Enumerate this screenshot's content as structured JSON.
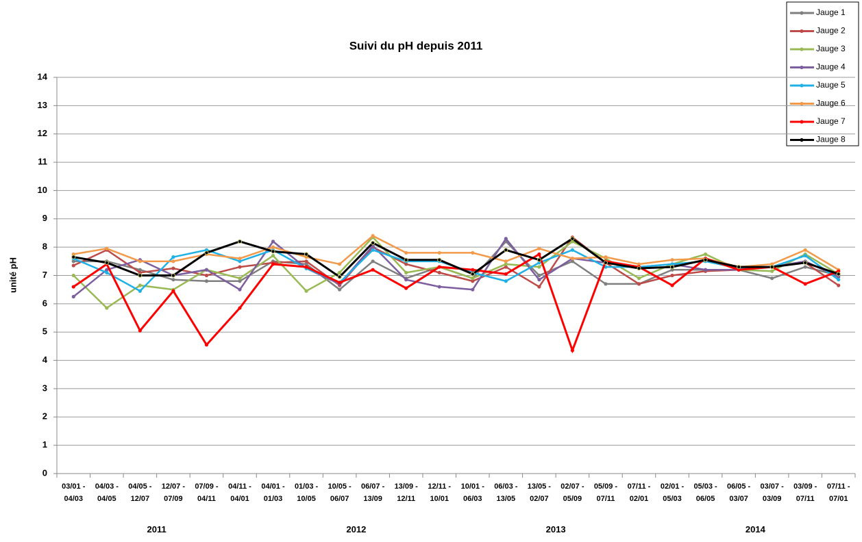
{
  "chart_data": {
    "type": "line",
    "title": "Suivi du pH depuis 2011",
    "y_label": "unité pH",
    "categories": [
      "03/01 - 04/03",
      "04/03 - 04/05",
      "04/05 - 12/07",
      "12/07 - 07/09",
      "07/09 - 04/11",
      "04/11 - 04/01",
      "04/01 - 01/03",
      "01/03 - 10/05",
      "10/05 - 06/07",
      "06/07 - 13/09",
      "13/09 - 12/11",
      "12/11 - 10/01",
      "10/01 - 06/03",
      "06/03 - 13/05",
      "13/05 - 02/07",
      "02/07 - 05/09",
      "05/09 - 07/11",
      "07/11 - 02/01",
      "02/01 - 05/03",
      "05/03 - 06/05",
      "06/05 - 03/07",
      "03/07 - 03/09",
      "03/09 - 07/11",
      "07/11 - 07/01"
    ],
    "groups": [
      "2011",
      "2012",
      "2013",
      "2014"
    ],
    "ylim": [
      0,
      14
    ],
    "yticks": [
      0,
      1,
      2,
      3,
      4,
      5,
      6,
      7,
      8,
      9,
      10,
      11,
      12,
      13,
      14
    ],
    "grid": true,
    "legend": "top-right",
    "series": [
      {
        "name": "Jauge 1",
        "color": "#7f7f7f",
        "values": [
          7.5,
          7.5,
          7.2,
          6.85,
          6.8,
          6.8,
          7.5,
          7.4,
          6.5,
          7.5,
          6.9,
          7.3,
          6.9,
          8.2,
          7.0,
          7.5,
          6.7,
          6.7,
          7.2,
          7.2,
          7.2,
          6.9,
          7.3,
          7.0
        ]
      },
      {
        "name": "Jauge 2",
        "color": "#be4b48",
        "values": [
          7.35,
          7.9,
          7.1,
          7.25,
          7.0,
          7.3,
          7.45,
          7.5,
          6.65,
          8.0,
          7.4,
          7.1,
          6.8,
          7.3,
          6.6,
          8.35,
          7.45,
          6.7,
          7.0,
          7.15,
          7.2,
          7.3,
          7.45,
          6.65
        ]
      },
      {
        "name": "Jauge 3",
        "color": "#98b954",
        "values": [
          7.0,
          5.85,
          6.65,
          6.5,
          7.2,
          6.9,
          7.7,
          6.45,
          7.1,
          8.35,
          7.1,
          7.3,
          6.9,
          7.4,
          7.3,
          8.2,
          7.6,
          6.9,
          7.4,
          7.75,
          7.2,
          7.15,
          7.75,
          7.05
        ]
      },
      {
        "name": "Jauge 4",
        "color": "#7d5fa0",
        "values": [
          6.25,
          7.2,
          7.55,
          7.0,
          7.2,
          6.5,
          8.2,
          7.25,
          6.7,
          8.05,
          6.85,
          6.6,
          6.5,
          8.3,
          6.85,
          7.6,
          7.45,
          7.3,
          7.4,
          7.2,
          7.2,
          7.3,
          7.5,
          6.95
        ]
      },
      {
        "name": "Jauge 5",
        "color": "#1fb0e6",
        "values": [
          7.6,
          7.1,
          6.45,
          7.65,
          7.9,
          7.5,
          7.9,
          7.25,
          6.75,
          7.9,
          7.5,
          7.5,
          7.1,
          6.8,
          7.45,
          7.9,
          7.3,
          7.3,
          7.4,
          7.5,
          7.25,
          7.3,
          7.7,
          6.85
        ]
      },
      {
        "name": "Jauge 6",
        "color": "#f29a4a",
        "values": [
          7.75,
          7.95,
          7.5,
          7.5,
          7.75,
          7.6,
          8.0,
          7.65,
          7.4,
          8.4,
          7.8,
          7.8,
          7.8,
          7.5,
          7.95,
          7.6,
          7.65,
          7.4,
          7.55,
          7.6,
          7.3,
          7.4,
          7.9,
          7.2
        ]
      },
      {
        "name": "Jauge 7",
        "color": "#ff0000",
        "values": [
          6.6,
          7.4,
          5.05,
          6.45,
          4.55,
          5.85,
          7.4,
          7.3,
          6.75,
          7.2,
          6.55,
          7.3,
          7.2,
          7.05,
          7.75,
          4.35,
          7.5,
          7.3,
          6.65,
          7.6,
          7.2,
          7.3,
          6.7,
          7.15
        ]
      },
      {
        "name": "Jauge 8",
        "color": "#000000",
        "values": [
          7.65,
          7.45,
          7.0,
          7.0,
          7.8,
          8.2,
          7.85,
          7.75,
          6.95,
          8.15,
          7.55,
          7.55,
          7.05,
          7.9,
          7.55,
          8.3,
          7.45,
          7.25,
          7.3,
          7.55,
          7.3,
          7.3,
          7.45,
          7.05
        ]
      }
    ]
  }
}
